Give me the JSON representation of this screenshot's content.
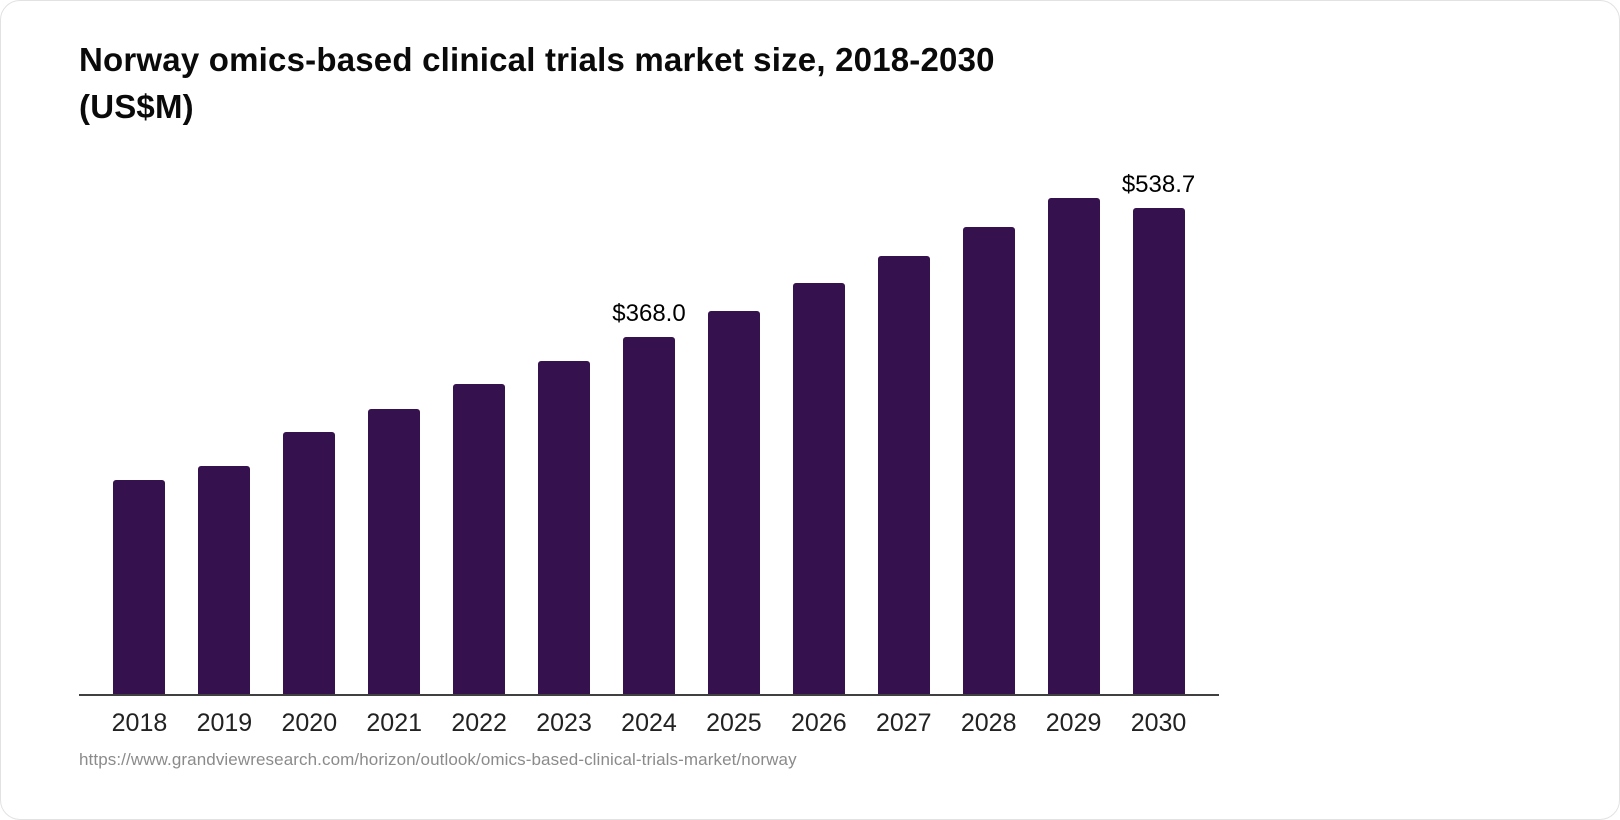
{
  "card": {
    "title_line1": "Norway omics-based clinical trials market size, 2018-2030",
    "title_line2": "(US$M)",
    "source_url": "https://www.grandviewresearch.com/horizon/outlook/omics-based-clinical-trials-market/norway"
  },
  "chart_data": {
    "type": "bar",
    "title": "Norway omics-based clinical trials market size, 2018-2030 (US$M)",
    "categories": [
      "2018",
      "2019",
      "2020",
      "2021",
      "2022",
      "2023",
      "2024",
      "2025",
      "2026",
      "2027",
      "2028",
      "2029",
      "2030"
    ],
    "values": [
      220,
      235,
      270,
      294,
      319,
      343,
      368.0,
      394,
      423,
      451,
      481,
      511,
      538.7
    ],
    "value_labels": {
      "2024": "$368.0",
      "2030": "$538.7"
    },
    "bar_color": "#35114E",
    "axis_color": "#404040",
    "ylim": [
      0,
      560
    ],
    "grid": false,
    "legend": false,
    "xlabel": "",
    "ylabel": ""
  }
}
